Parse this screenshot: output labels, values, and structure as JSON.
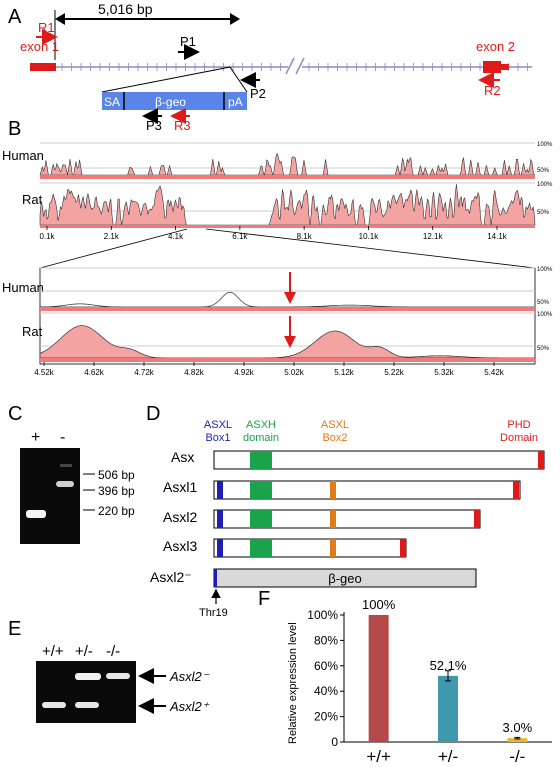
{
  "panelA": {
    "letter": "A",
    "distance_label": "5,016 bp",
    "exon1": "exon 1",
    "exon2": "exon 2",
    "primers": {
      "R1": "R1",
      "P1": "P1",
      "P2": "P2",
      "P3": "P3",
      "R3": "R3",
      "R2": "R2"
    },
    "cassette": {
      "sa": "SA",
      "geo": "β-geo",
      "pa": "pA"
    }
  },
  "panelB": {
    "letter": "B",
    "rows": [
      "Human",
      "Rat"
    ],
    "pct_top": "100%",
    "pct_mid": "50%",
    "ticks_top": [
      "0.1k",
      "2.1k",
      "4.1k",
      "6.1k",
      "8.1k",
      "10.1k",
      "12.1k",
      "14.1k"
    ],
    "ticks_zoom": [
      "4.52k",
      "4.62k",
      "4.72k",
      "4.82k",
      "4.92k",
      "5.02k",
      "5.12k",
      "5.22k",
      "5.32k",
      "5.42k"
    ]
  },
  "panelC": {
    "letter": "C",
    "lanes": [
      "+",
      "-"
    ],
    "sizes": [
      "506 bp",
      "396 bp",
      "220 bp"
    ]
  },
  "panelD": {
    "letter": "D",
    "headers": {
      "box1": [
        "ASXL",
        "Box1"
      ],
      "asxh": [
        "ASXH",
        "domain"
      ],
      "box2": [
        "ASXL",
        "Box2"
      ],
      "phd": [
        "PHD",
        "Domain"
      ]
    },
    "proteins": [
      "Asx",
      "Asxl1",
      "Asxl2",
      "Asxl3",
      "Asxl2⁻"
    ],
    "fusion_label": "β-geo",
    "site_label": "Thr19",
    "colors": {
      "box1": "#1f1fb0",
      "asxh": "#1aa34a",
      "box2": "#e07b1a",
      "phd": "#e01a1a"
    }
  },
  "panelE": {
    "letter": "E",
    "lanes": [
      "+/+",
      "+/-",
      "-/-"
    ],
    "bands": [
      "Asxl2⁻",
      "Asxl2⁺"
    ]
  },
  "panelF": {
    "letter": "F",
    "ylabel": "Relative expression level",
    "chart_data": {
      "type": "bar",
      "categories": [
        "+/+",
        "+/-",
        "-/-"
      ],
      "values": [
        100,
        52.1,
        3.0
      ],
      "value_labels": [
        "100%",
        "52.1%",
        "3.0%"
      ],
      "ylim": [
        0,
        100
      ],
      "yticks": [
        "0",
        "20%",
        "40%",
        "60%",
        "80%",
        "100%"
      ],
      "colors": [
        "#b5494a",
        "#3e99ad",
        "#e8b820"
      ],
      "title": "",
      "xlabel": ""
    }
  }
}
